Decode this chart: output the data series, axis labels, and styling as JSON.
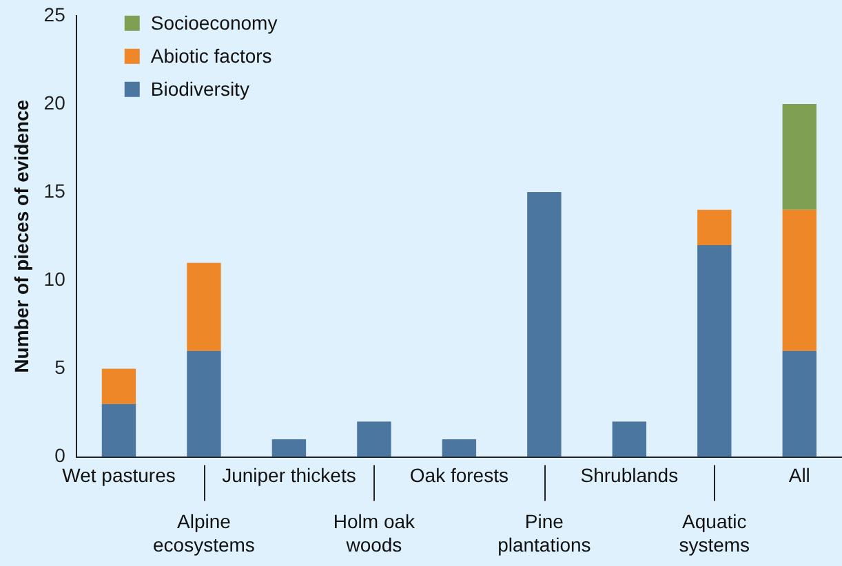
{
  "chart_data": {
    "type": "bar",
    "stacked": true,
    "ylabel": "Number of pieces of evidence",
    "categories": [
      "Wet pastures",
      "Alpine ecosystems",
      "Juniper thickets",
      "Holm oak woods",
      "Oak forests",
      "Pine plantations",
      "Shrublands",
      "Aquatic systems",
      "All"
    ],
    "series": [
      {
        "name": "Biodiversity",
        "color": "#4a76a0",
        "values": [
          3,
          6,
          1,
          2,
          1,
          15,
          2,
          12,
          6
        ]
      },
      {
        "name": "Abiotic factors",
        "color": "#ee8727",
        "values": [
          2,
          5,
          0,
          0,
          0,
          0,
          0,
          2,
          8
        ]
      },
      {
        "name": "Socioeconomy",
        "color": "#7f9f52",
        "values": [
          0,
          0,
          0,
          0,
          0,
          0,
          0,
          0,
          6
        ]
      }
    ],
    "ylim": [
      0,
      25
    ],
    "yticks": [
      0,
      5,
      10,
      15,
      20,
      25
    ],
    "grid": false,
    "legend": "top left"
  }
}
